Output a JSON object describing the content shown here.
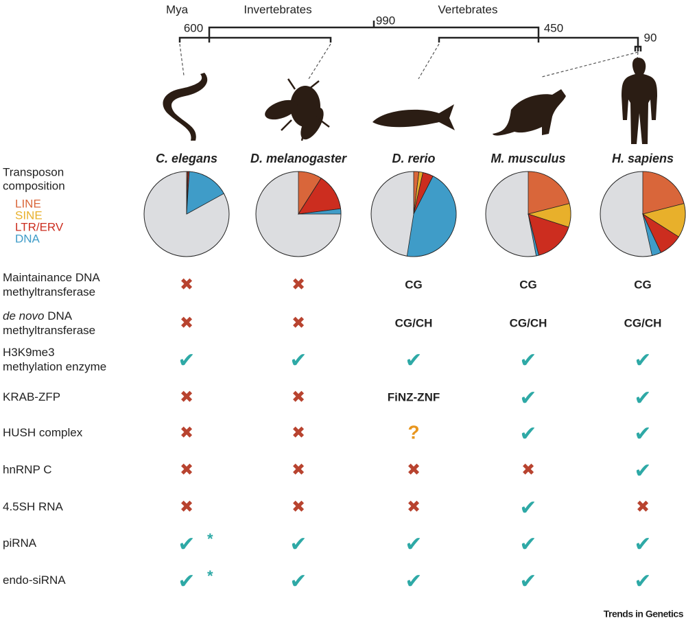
{
  "tree": {
    "mya_label": "Mya",
    "groups": [
      "Invertebrates",
      "Vertebrates"
    ],
    "nodes": [
      "600",
      "990",
      "450",
      "90"
    ]
  },
  "species": [
    "C. elegans",
    "D. melanogaster",
    "D. rerio",
    "M. musculus",
    "H. sapiens"
  ],
  "legend": {
    "title": [
      "Transposon",
      "composition"
    ],
    "items": [
      {
        "name": "LINE",
        "color": "#d9663a"
      },
      {
        "name": "SINE",
        "color": "#e8b02b"
      },
      {
        "name": "LTR/ERV",
        "color": "#cc2d1f"
      },
      {
        "name": "DNA",
        "color": "#3f9cc8"
      }
    ]
  },
  "chart_data": [
    {
      "type": "pie",
      "values": [
        0.4,
        0.1,
        0.5,
        16
      ]
    },
    {
      "type": "pie",
      "values": [
        9,
        0,
        14,
        2
      ]
    },
    {
      "type": "pie",
      "values": [
        2,
        1.5,
        4,
        45
      ]
    },
    {
      "type": "pie",
      "values": [
        21,
        9,
        16,
        1
      ]
    },
    {
      "type": "pie",
      "values": [
        21,
        13,
        9,
        3.5
      ]
    }
  ],
  "rows": [
    {
      "label": [
        "Maintainance DNA",
        "methyltransferase"
      ],
      "cells": [
        "✖",
        "✖",
        "CG",
        "CG",
        "CG"
      ]
    },
    {
      "label_italic": "de novo",
      "label": [
        " DNA",
        "methyltransferase"
      ],
      "cells": [
        "✖",
        "✖",
        "CG/CH",
        "CG/CH",
        "CG/CH"
      ]
    },
    {
      "label": [
        "H3K9me3",
        "methylation enzyme"
      ],
      "cells": [
        "✔",
        "✔",
        "✔",
        "✔",
        "✔"
      ]
    },
    {
      "label": [
        "KRAB-ZFP"
      ],
      "cells": [
        "✖",
        "✖",
        "FiNZ-ZNF",
        "✔",
        "✔"
      ]
    },
    {
      "label": [
        "HUSH complex"
      ],
      "cells": [
        "✖",
        "✖",
        "?",
        "✔",
        "✔"
      ]
    },
    {
      "label": [
        "hnRNP C"
      ],
      "cells": [
        "✖",
        "✖",
        "✖",
        "✖",
        "✔"
      ]
    },
    {
      "label": [
        "4.5SH RNA"
      ],
      "cells": [
        "✖",
        "✖",
        "✖",
        "✔",
        "✖"
      ]
    },
    {
      "label": [
        "piRNA"
      ],
      "cells": [
        "✔",
        "✔",
        "✔",
        "✔",
        "✔"
      ],
      "note_cell": 0,
      "note": "*"
    },
    {
      "label": [
        "endo-siRNA"
      ],
      "cells": [
        "✔",
        "✔",
        "✔",
        "✔",
        "✔"
      ],
      "note_cell": 0,
      "note": "*"
    }
  ],
  "footer": "Trends in Genetics"
}
